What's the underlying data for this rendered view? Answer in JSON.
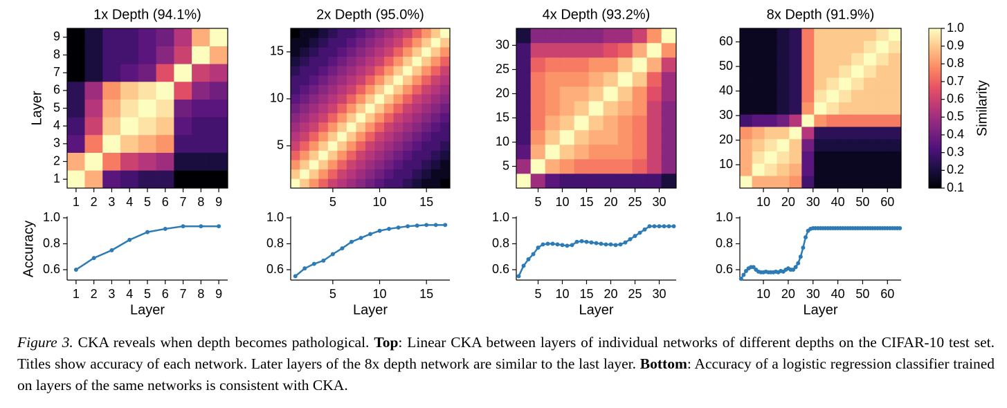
{
  "chart_data": [
    {
      "type": "heatmap",
      "title": "1x Depth (94.1%)",
      "ylabel": "Layer",
      "colormap": "magma",
      "bins": [
        0.5,
        1.5,
        2.5,
        3.5,
        4.5,
        5.5,
        6.5,
        7.5,
        8.5,
        9.5
      ],
      "xlim": [
        0.5,
        9.5
      ],
      "ylim": [
        0.5,
        9.5
      ],
      "xticks": [
        1,
        2,
        3,
        4,
        5,
        6,
        7,
        8,
        9
      ],
      "yticks": [
        1,
        2,
        3,
        4,
        5,
        6,
        7,
        8,
        9
      ],
      "matrix": [
        [
          1.0,
          0.85,
          0.35,
          0.3,
          0.25,
          0.25,
          0.1,
          0.1,
          0.1
        ],
        [
          0.85,
          1.0,
          0.75,
          0.6,
          0.55,
          0.5,
          0.2,
          0.2,
          0.2
        ],
        [
          0.35,
          0.75,
          1.0,
          0.9,
          0.85,
          0.8,
          0.3,
          0.3,
          0.3
        ],
        [
          0.3,
          0.6,
          0.9,
          1.0,
          0.95,
          0.9,
          0.35,
          0.3,
          0.3
        ],
        [
          0.25,
          0.55,
          0.85,
          0.95,
          1.0,
          0.95,
          0.4,
          0.35,
          0.35
        ],
        [
          0.25,
          0.5,
          0.8,
          0.9,
          0.95,
          1.0,
          0.65,
          0.45,
          0.4
        ],
        [
          0.1,
          0.2,
          0.3,
          0.35,
          0.4,
          0.65,
          1.0,
          0.6,
          0.55
        ],
        [
          0.1,
          0.2,
          0.3,
          0.3,
          0.35,
          0.45,
          0.6,
          1.0,
          0.85
        ],
        [
          0.1,
          0.2,
          0.3,
          0.3,
          0.35,
          0.4,
          0.55,
          0.85,
          1.0
        ]
      ]
    },
    {
      "type": "heatmap",
      "title": "2x Depth (95.0%)",
      "colormap": "magma",
      "bins": [
        0.5,
        1.5,
        2.5,
        3.5,
        4.5,
        5.5,
        6.5,
        7.5,
        8.5,
        9.5,
        10.5,
        11.5,
        12.5,
        13.5,
        14.5,
        15.5,
        16.5,
        17.5
      ],
      "xlim": [
        0.5,
        17.5
      ],
      "ylim": [
        0.5,
        17.5
      ],
      "xticks": [
        5,
        10,
        15
      ],
      "yticks": [
        5,
        10,
        15
      ],
      "matrix": [
        [
          1,
          0.9,
          0.8,
          0.7,
          0.6,
          0.55,
          0.5,
          0.45,
          0.4,
          0.35,
          0.3,
          0.3,
          0.25,
          0.2,
          0.15,
          0.15,
          0.1
        ],
        [
          0.9,
          1,
          0.9,
          0.8,
          0.7,
          0.6,
          0.55,
          0.5,
          0.45,
          0.4,
          0.35,
          0.3,
          0.3,
          0.25,
          0.2,
          0.15,
          0.15
        ],
        [
          0.8,
          0.9,
          1,
          0.9,
          0.8,
          0.7,
          0.6,
          0.55,
          0.5,
          0.45,
          0.4,
          0.35,
          0.3,
          0.3,
          0.25,
          0.2,
          0.15
        ],
        [
          0.7,
          0.8,
          0.9,
          1,
          0.9,
          0.8,
          0.7,
          0.6,
          0.55,
          0.5,
          0.45,
          0.4,
          0.35,
          0.3,
          0.3,
          0.25,
          0.2
        ],
        [
          0.6,
          0.7,
          0.8,
          0.9,
          1,
          0.9,
          0.8,
          0.7,
          0.6,
          0.55,
          0.5,
          0.45,
          0.4,
          0.35,
          0.3,
          0.3,
          0.25
        ],
        [
          0.55,
          0.6,
          0.7,
          0.8,
          0.9,
          1,
          0.9,
          0.8,
          0.7,
          0.6,
          0.55,
          0.5,
          0.45,
          0.4,
          0.35,
          0.3,
          0.3
        ],
        [
          0.5,
          0.55,
          0.6,
          0.7,
          0.8,
          0.9,
          1,
          0.9,
          0.8,
          0.7,
          0.6,
          0.55,
          0.5,
          0.45,
          0.4,
          0.35,
          0.3
        ],
        [
          0.45,
          0.5,
          0.55,
          0.6,
          0.7,
          0.8,
          0.9,
          1,
          0.9,
          0.8,
          0.7,
          0.6,
          0.55,
          0.5,
          0.45,
          0.4,
          0.35
        ],
        [
          0.4,
          0.45,
          0.5,
          0.55,
          0.6,
          0.7,
          0.8,
          0.9,
          1,
          0.9,
          0.8,
          0.7,
          0.6,
          0.55,
          0.5,
          0.45,
          0.4
        ],
        [
          0.35,
          0.4,
          0.45,
          0.5,
          0.55,
          0.6,
          0.7,
          0.8,
          0.9,
          1,
          0.9,
          0.8,
          0.7,
          0.6,
          0.55,
          0.5,
          0.45
        ],
        [
          0.3,
          0.35,
          0.4,
          0.45,
          0.5,
          0.55,
          0.6,
          0.7,
          0.8,
          0.9,
          1,
          0.9,
          0.8,
          0.7,
          0.6,
          0.55,
          0.5
        ],
        [
          0.3,
          0.3,
          0.35,
          0.4,
          0.45,
          0.5,
          0.55,
          0.6,
          0.7,
          0.8,
          0.9,
          1,
          0.9,
          0.8,
          0.7,
          0.6,
          0.55
        ],
        [
          0.25,
          0.3,
          0.3,
          0.35,
          0.4,
          0.45,
          0.5,
          0.55,
          0.6,
          0.7,
          0.8,
          0.9,
          1,
          0.9,
          0.8,
          0.7,
          0.6
        ],
        [
          0.2,
          0.25,
          0.3,
          0.3,
          0.35,
          0.4,
          0.45,
          0.5,
          0.55,
          0.6,
          0.7,
          0.8,
          0.9,
          1,
          0.9,
          0.8,
          0.7
        ],
        [
          0.15,
          0.2,
          0.25,
          0.3,
          0.3,
          0.35,
          0.4,
          0.45,
          0.5,
          0.55,
          0.6,
          0.7,
          0.8,
          0.9,
          1,
          0.9,
          0.8
        ],
        [
          0.15,
          0.15,
          0.2,
          0.25,
          0.3,
          0.3,
          0.35,
          0.4,
          0.45,
          0.5,
          0.55,
          0.6,
          0.7,
          0.8,
          0.9,
          1,
          0.9
        ],
        [
          0.1,
          0.15,
          0.15,
          0.2,
          0.25,
          0.3,
          0.3,
          0.35,
          0.4,
          0.45,
          0.5,
          0.55,
          0.6,
          0.7,
          0.8,
          0.9,
          1
        ]
      ]
    },
    {
      "type": "heatmap",
      "title": "4x Depth (93.2%)",
      "colormap": "magma",
      "bins": [
        0.5,
        3.5,
        6.5,
        9.5,
        12.5,
        15.5,
        18.5,
        21.5,
        24.5,
        27.5,
        30.5,
        33.5
      ],
      "xlim": [
        0.5,
        33.5
      ],
      "ylim": [
        0.5,
        33.5
      ],
      "xticks": [
        5,
        10,
        15,
        20,
        25,
        30
      ],
      "yticks": [
        5,
        10,
        15,
        20,
        25,
        30
      ],
      "matrix": [
        [
          1,
          0.5,
          0.35,
          0.3,
          0.3,
          0.3,
          0.3,
          0.3,
          0.3,
          0.3,
          0.2
        ],
        [
          0.5,
          1,
          0.85,
          0.8,
          0.75,
          0.75,
          0.75,
          0.75,
          0.7,
          0.6,
          0.45
        ],
        [
          0.35,
          0.85,
          1,
          0.9,
          0.85,
          0.8,
          0.8,
          0.8,
          0.75,
          0.6,
          0.45
        ],
        [
          0.3,
          0.8,
          0.9,
          1,
          0.9,
          0.85,
          0.85,
          0.8,
          0.75,
          0.6,
          0.45
        ],
        [
          0.3,
          0.75,
          0.85,
          0.9,
          1,
          0.9,
          0.85,
          0.8,
          0.75,
          0.6,
          0.45
        ],
        [
          0.3,
          0.75,
          0.8,
          0.85,
          0.9,
          1,
          0.9,
          0.85,
          0.8,
          0.6,
          0.45
        ],
        [
          0.3,
          0.75,
          0.8,
          0.85,
          0.85,
          0.9,
          1,
          0.9,
          0.8,
          0.65,
          0.5
        ],
        [
          0.3,
          0.75,
          0.8,
          0.8,
          0.8,
          0.85,
          0.9,
          1,
          0.9,
          0.7,
          0.5
        ],
        [
          0.3,
          0.7,
          0.75,
          0.75,
          0.75,
          0.8,
          0.8,
          0.9,
          1,
          0.85,
          0.6
        ],
        [
          0.3,
          0.6,
          0.6,
          0.6,
          0.6,
          0.6,
          0.65,
          0.7,
          0.85,
          1,
          0.8
        ],
        [
          0.2,
          0.45,
          0.45,
          0.45,
          0.45,
          0.45,
          0.5,
          0.5,
          0.6,
          0.8,
          1
        ]
      ]
    },
    {
      "type": "heatmap",
      "title": "8x Depth (91.9%)",
      "colormap": "magma",
      "bins": [
        0.5,
        5.5,
        10.5,
        15.5,
        20.5,
        25.5,
        30.5,
        35.5,
        40.5,
        45.5,
        50.5,
        55.5,
        60.5,
        65.5
      ],
      "xlim": [
        0.5,
        65.5
      ],
      "ylim": [
        0.5,
        65.5
      ],
      "xticks": [
        10,
        20,
        30,
        40,
        50,
        60
      ],
      "yticks": [
        10,
        20,
        30,
        40,
        50,
        60
      ],
      "matrix": [
        [
          1,
          0.85,
          0.85,
          0.85,
          0.8,
          0.3,
          0.15,
          0.15,
          0.15,
          0.15,
          0.15,
          0.15,
          0.15
        ],
        [
          0.85,
          1,
          0.95,
          0.9,
          0.85,
          0.35,
          0.15,
          0.15,
          0.15,
          0.15,
          0.15,
          0.15,
          0.15
        ],
        [
          0.85,
          0.95,
          1,
          0.95,
          0.9,
          0.35,
          0.15,
          0.15,
          0.15,
          0.15,
          0.15,
          0.15,
          0.15
        ],
        [
          0.85,
          0.9,
          0.95,
          1,
          0.9,
          0.4,
          0.2,
          0.2,
          0.2,
          0.2,
          0.2,
          0.2,
          0.2
        ],
        [
          0.8,
          0.85,
          0.9,
          0.9,
          1,
          0.55,
          0.25,
          0.25,
          0.25,
          0.25,
          0.25,
          0.25,
          0.25
        ],
        [
          0.3,
          0.35,
          0.35,
          0.4,
          0.55,
          1,
          0.8,
          0.75,
          0.75,
          0.75,
          0.75,
          0.75,
          0.75
        ],
        [
          0.15,
          0.15,
          0.15,
          0.2,
          0.25,
          0.8,
          1,
          0.95,
          0.9,
          0.9,
          0.9,
          0.9,
          0.9
        ],
        [
          0.15,
          0.15,
          0.15,
          0.2,
          0.25,
          0.75,
          0.95,
          1,
          0.95,
          0.9,
          0.9,
          0.9,
          0.9
        ],
        [
          0.15,
          0.15,
          0.15,
          0.2,
          0.25,
          0.75,
          0.9,
          0.95,
          1,
          0.95,
          0.9,
          0.9,
          0.9
        ],
        [
          0.15,
          0.15,
          0.15,
          0.2,
          0.25,
          0.75,
          0.9,
          0.9,
          0.95,
          1,
          0.95,
          0.9,
          0.9
        ],
        [
          0.15,
          0.15,
          0.15,
          0.2,
          0.25,
          0.75,
          0.9,
          0.9,
          0.9,
          0.95,
          1,
          0.95,
          0.9
        ],
        [
          0.15,
          0.15,
          0.15,
          0.2,
          0.25,
          0.75,
          0.9,
          0.9,
          0.9,
          0.9,
          0.95,
          1,
          0.95
        ],
        [
          0.15,
          0.15,
          0.15,
          0.2,
          0.25,
          0.75,
          0.9,
          0.9,
          0.9,
          0.9,
          0.9,
          0.95,
          1
        ]
      ]
    },
    {
      "type": "line",
      "xlabel": "Layer",
      "ylabel": "Accuracy",
      "color": "#2c7bb6",
      "xlim": [
        0.5,
        9.5
      ],
      "ylim": [
        0.52,
        1.0
      ],
      "xticks": [
        1,
        2,
        3,
        4,
        5,
        6,
        7,
        8,
        9
      ],
      "yticks": [
        0.6,
        0.8,
        {
          "value": 1,
          "label": "1.0"
        }
      ],
      "x": [
        1,
        2,
        3,
        4,
        5,
        6,
        7,
        8,
        9
      ],
      "values": [
        0.6,
        0.69,
        0.75,
        0.83,
        0.89,
        0.915,
        0.935,
        0.935,
        0.935
      ]
    },
    {
      "type": "line",
      "xlabel": "Layer",
      "color": "#2c7bb6",
      "xlim": [
        0.5,
        17.5
      ],
      "ylim": [
        0.52,
        1.0
      ],
      "xticks": [
        5,
        10,
        15
      ],
      "yticks": [
        0.6,
        0.8,
        {
          "value": 1,
          "label": "1.0"
        }
      ],
      "x": [
        1,
        2,
        3,
        4,
        5,
        6,
        7,
        8,
        9,
        10,
        11,
        12,
        13,
        14,
        15,
        16,
        17
      ],
      "values": [
        0.55,
        0.61,
        0.645,
        0.67,
        0.72,
        0.765,
        0.815,
        0.845,
        0.875,
        0.9,
        0.915,
        0.925,
        0.935,
        0.94,
        0.945,
        0.945,
        0.945
      ]
    },
    {
      "type": "line",
      "xlabel": "Layer",
      "color": "#2c7bb6",
      "xlim": [
        0.5,
        33.5
      ],
      "ylim": [
        0.52,
        1.0
      ],
      "xticks": [
        5,
        10,
        15,
        20,
        25,
        30
      ],
      "yticks": [
        0.6,
        0.8,
        {
          "value": 1,
          "label": "1.0"
        }
      ],
      "x": [
        1,
        2,
        3,
        4,
        5,
        6,
        7,
        8,
        9,
        10,
        11,
        12,
        13,
        14,
        15,
        16,
        17,
        18,
        19,
        20,
        21,
        22,
        23,
        24,
        25,
        26,
        27,
        28,
        29,
        30,
        31,
        32,
        33
      ],
      "values": [
        0.55,
        0.63,
        0.68,
        0.72,
        0.77,
        0.795,
        0.8,
        0.8,
        0.795,
        0.79,
        0.785,
        0.79,
        0.815,
        0.82,
        0.815,
        0.81,
        0.805,
        0.8,
        0.795,
        0.795,
        0.79,
        0.795,
        0.81,
        0.835,
        0.86,
        0.885,
        0.91,
        0.935,
        0.935,
        0.935,
        0.935,
        0.935,
        0.935
      ]
    },
    {
      "type": "line",
      "xlabel": "Layer",
      "color": "#2c7bb6",
      "xlim": [
        0.5,
        65.5
      ],
      "ylim": [
        0.52,
        1.0
      ],
      "xticks": [
        10,
        20,
        30,
        40,
        50,
        60
      ],
      "yticks": [
        0.6,
        0.8,
        {
          "value": 1,
          "label": "1.0"
        }
      ],
      "x": [
        1,
        2,
        3,
        4,
        5,
        6,
        7,
        8,
        9,
        10,
        11,
        12,
        13,
        14,
        15,
        16,
        17,
        18,
        19,
        20,
        21,
        22,
        23,
        24,
        25,
        26,
        27,
        28,
        29,
        30,
        31,
        32,
        33,
        34,
        35,
        36,
        37,
        38,
        39,
        40,
        41,
        42,
        43,
        44,
        45,
        46,
        47,
        48,
        49,
        50,
        51,
        52,
        53,
        54,
        55,
        56,
        57,
        58,
        59,
        60,
        61,
        62,
        63,
        64,
        65
      ],
      "values": [
        0.53,
        0.56,
        0.59,
        0.61,
        0.62,
        0.62,
        0.6,
        0.585,
        0.58,
        0.58,
        0.585,
        0.58,
        0.58,
        0.58,
        0.585,
        0.58,
        0.59,
        0.585,
        0.6,
        0.61,
        0.6,
        0.6,
        0.62,
        0.65,
        0.7,
        0.77,
        0.85,
        0.9,
        0.915,
        0.92,
        0.92,
        0.92,
        0.92,
        0.92,
        0.92,
        0.92,
        0.92,
        0.92,
        0.92,
        0.92,
        0.92,
        0.92,
        0.92,
        0.92,
        0.92,
        0.92,
        0.92,
        0.92,
        0.92,
        0.92,
        0.92,
        0.92,
        0.92,
        0.92,
        0.92,
        0.92,
        0.92,
        0.92,
        0.92,
        0.92,
        0.92,
        0.92,
        0.92,
        0.92,
        0.92
      ]
    }
  ],
  "colorbar": {
    "label": "Similarity",
    "colormap": "magma",
    "ylim": [
      0.1,
      1.0
    ],
    "yticks": [
      0.1,
      0.2,
      0.3,
      0.4,
      0.5,
      0.6,
      0.7,
      0.8,
      0.9,
      {
        "value": 1,
        "label": "1.0"
      }
    ]
  },
  "caption": [
    "Figure 3.",
    " CKA reveals when depth becomes pathological. ",
    "Top",
    ": Linear CKA between layers of individual networks of different depths on the CIFAR-10 test set. Titles show accuracy of each network. Later layers of the 8x depth network are similar to the last layer. ",
    "Bottom",
    ": Accuracy of a logistic regression classifier trained on layers of the same networks is consistent with CKA."
  ]
}
